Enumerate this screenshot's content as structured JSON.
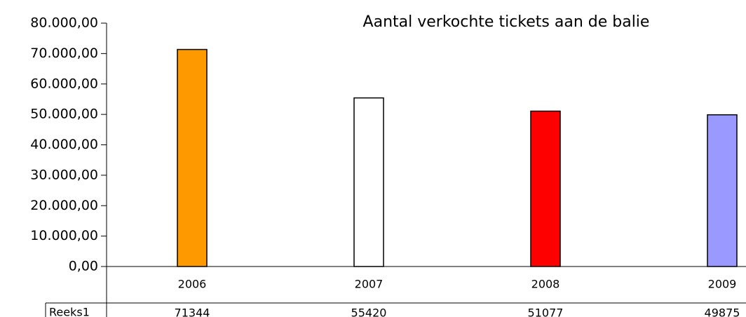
{
  "chart_data": {
    "type": "bar",
    "title": "Aantal verkochte tickets aan de balie",
    "categories": [
      "2006",
      "2007",
      "2008",
      "2009"
    ],
    "series": [
      {
        "name": "Reeks1",
        "colors": [
          "#ff9900",
          "#ffffff",
          "#ff0000",
          "#9999ff"
        ],
        "values": [
          71344,
          55420,
          51077,
          49875
        ]
      }
    ],
    "ylim": [
      0,
      80000
    ],
    "yticks": [
      {
        "value": 0,
        "label": "0,00"
      },
      {
        "value": 10000,
        "label": "10.000,00"
      },
      {
        "value": 20000,
        "label": "20.000,00"
      },
      {
        "value": 30000,
        "label": "30.000,00"
      },
      {
        "value": 40000,
        "label": "40.000,00"
      },
      {
        "value": 50000,
        "label": "50.000,00"
      },
      {
        "value": 60000,
        "label": "60.000,00"
      },
      {
        "value": 70000,
        "label": "70.000,00"
      },
      {
        "value": 80000,
        "label": "80.000,00"
      }
    ],
    "grid": false
  }
}
